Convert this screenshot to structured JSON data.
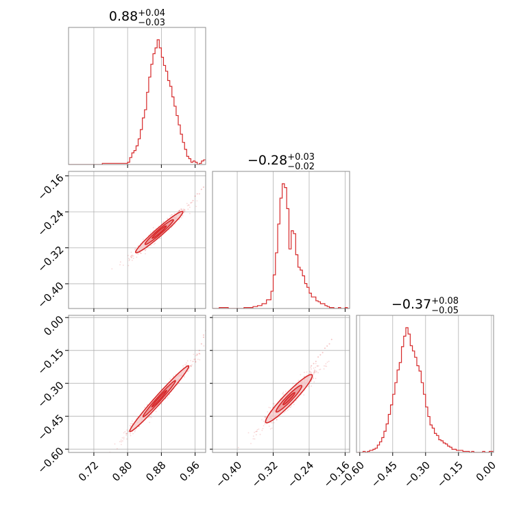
{
  "chart_data": {
    "type": "corner",
    "color": "#d62728",
    "parameters": [
      {
        "title": {
          "median": "0.88",
          "upper": "+0.04",
          "lower": "−0.03"
        },
        "range": [
          0.66,
          0.985
        ],
        "ticks": [
          0.72,
          0.8,
          0.88,
          0.96
        ],
        "tick_labels": [
          "0.72",
          "0.80",
          "0.88",
          "0.96"
        ],
        "hist": {
          "x": [
            0.66,
            0.7,
            0.72,
            0.74,
            0.76,
            0.78,
            0.8,
            0.805,
            0.81,
            0.815,
            0.82,
            0.825,
            0.83,
            0.835,
            0.84,
            0.845,
            0.85,
            0.855,
            0.86,
            0.865,
            0.87,
            0.875,
            0.88,
            0.885,
            0.89,
            0.895,
            0.9,
            0.905,
            0.91,
            0.915,
            0.92,
            0.925,
            0.93,
            0.935,
            0.94,
            0.945,
            0.95,
            0.955,
            0.96,
            0.965,
            0.97,
            0.975,
            0.98
          ],
          "y": [
            0,
            0,
            0,
            1,
            1,
            1,
            2,
            6,
            10,
            12,
            16,
            22,
            30,
            40,
            47,
            62,
            75,
            86,
            95,
            100,
            107,
            100,
            92,
            85,
            80,
            72,
            67,
            58,
            50,
            42,
            34,
            26,
            19,
            13,
            7,
            5,
            2,
            3,
            2,
            0,
            1,
            3,
            4
          ]
        }
      },
      {
        "title": {
          "median": "−0.28",
          "upper": "+0.03",
          "lower": "−0.02"
        },
        "range": [
          -0.455,
          -0.15
        ],
        "ticks": [
          -0.16,
          -0.24,
          -0.32,
          -0.4
        ],
        "tick_labels": [
          "−0.16",
          "−0.24",
          "−0.32",
          "−0.40"
        ],
        "hist": {
          "x": [
            -0.455,
            -0.44,
            -0.42,
            -0.4,
            -0.385,
            -0.375,
            -0.365,
            -0.355,
            -0.345,
            -0.335,
            -0.325,
            -0.32,
            -0.315,
            -0.31,
            -0.305,
            -0.3,
            -0.295,
            -0.29,
            -0.285,
            -0.28,
            -0.275,
            -0.27,
            -0.265,
            -0.26,
            -0.255,
            -0.25,
            -0.245,
            -0.24,
            -0.235,
            -0.23,
            -0.225,
            -0.22,
            -0.215,
            -0.21,
            -0.205,
            -0.2,
            -0.195,
            -0.19,
            -0.185,
            -0.18,
            -0.175,
            -0.17,
            -0.165,
            -0.16,
            -0.155
          ],
          "y": [
            0,
            1,
            0,
            0,
            1,
            1,
            2,
            3,
            5,
            9,
            18,
            35,
            58,
            88,
            115,
            130,
            126,
            104,
            62,
            81,
            78,
            56,
            43,
            40,
            34,
            26,
            22,
            16,
            12,
            12,
            8,
            7,
            5,
            5,
            3,
            2,
            1,
            1,
            0,
            0,
            1,
            0,
            0,
            1,
            0
          ]
        }
      },
      {
        "title": {
          "median": "−0.37",
          "upper": "+0.08",
          "lower": "−0.05"
        },
        "range": [
          -0.615,
          0.01
        ],
        "ticks": [
          -0.6,
          -0.45,
          -0.3,
          -0.15,
          0.0
        ],
        "tick_labels": [
          "−0.60",
          "−0.45",
          "−0.30",
          "−0.15",
          "0.00"
        ],
        "hist": {
          "x": [
            -0.61,
            -0.595,
            -0.585,
            -0.575,
            -0.565,
            -0.555,
            -0.54,
            -0.53,
            -0.52,
            -0.51,
            -0.5,
            -0.49,
            -0.48,
            -0.47,
            -0.46,
            -0.45,
            -0.44,
            -0.43,
            -0.42,
            -0.41,
            -0.4,
            -0.39,
            -0.38,
            -0.37,
            -0.36,
            -0.35,
            -0.34,
            -0.33,
            -0.32,
            -0.31,
            -0.3,
            -0.29,
            -0.28,
            -0.27,
            -0.26,
            -0.25,
            -0.24,
            -0.23,
            -0.22,
            -0.21,
            -0.2,
            -0.19,
            -0.18,
            -0.17,
            -0.16,
            -0.15,
            -0.14,
            -0.13,
            -0.12,
            -0.11,
            -0.1,
            -0.09,
            -0.08,
            -0.07,
            -0.06,
            -0.05,
            -0.04,
            -0.03,
            -0.02,
            -0.01
          ],
          "y": [
            0,
            0,
            1,
            0,
            1,
            2,
            3,
            4,
            7,
            10,
            14,
            20,
            27,
            36,
            45,
            55,
            66,
            78,
            85,
            100,
            110,
            118,
            112,
            101,
            96,
            90,
            82,
            77,
            66,
            55,
            43,
            34,
            26,
            23,
            18,
            16,
            12,
            11,
            9,
            8,
            6,
            5,
            3,
            3,
            2,
            2,
            2,
            1,
            1,
            1,
            0,
            1,
            0,
            0,
            0,
            0,
            1,
            0,
            0,
            1
          ]
        }
      }
    ],
    "pairs": [
      {
        "row": 1,
        "col": 0,
        "center": [
          0.875,
          -0.285
        ],
        "sd": [
          0.028,
          0.023
        ],
        "corr": 0.97,
        "levels": [
          1.0,
          0.6,
          0.3
        ],
        "tail": [
          [
            0.97,
            -0.2
          ],
          [
            0.955,
            -0.215
          ],
          [
            0.945,
            -0.225
          ],
          [
            0.975,
            -0.19
          ],
          [
            0.935,
            -0.235
          ],
          [
            0.96,
            -0.205
          ],
          [
            0.98,
            -0.185
          ],
          [
            0.95,
            -0.22
          ],
          [
            0.925,
            -0.245
          ],
          [
            0.965,
            -0.2
          ]
        ]
      },
      {
        "row": 2,
        "col": 0,
        "center": [
          0.875,
          -0.37
        ],
        "sd": [
          0.035,
          0.075
        ],
        "corr": 0.985,
        "levels": [
          1.0,
          0.55,
          0.25
        ],
        "tail": [
          [
            0.96,
            -0.19
          ],
          [
            0.965,
            -0.17
          ],
          [
            0.97,
            -0.15
          ],
          [
            0.975,
            -0.12
          ],
          [
            0.98,
            -0.09
          ],
          [
            0.985,
            -0.06
          ],
          [
            0.955,
            -0.2
          ],
          [
            0.945,
            -0.23
          ],
          [
            0.95,
            -0.22
          ],
          [
            0.98,
            -0.08
          ]
        ]
      },
      {
        "row": 2,
        "col": 1,
        "center": [
          -0.285,
          -0.37
        ],
        "sd": [
          0.026,
          0.055
        ],
        "corr": 0.95,
        "levels": [
          1.0,
          0.55,
          0.25
        ],
        "tail": [
          [
            -0.215,
            -0.17
          ],
          [
            -0.205,
            -0.14
          ],
          [
            -0.195,
            -0.12
          ],
          [
            -0.225,
            -0.2
          ],
          [
            -0.21,
            -0.16
          ],
          [
            -0.235,
            -0.22
          ],
          [
            -0.2,
            -0.13
          ],
          [
            -0.19,
            -0.1
          ],
          [
            -0.22,
            -0.18
          ],
          [
            -0.23,
            -0.21
          ]
        ]
      }
    ]
  }
}
